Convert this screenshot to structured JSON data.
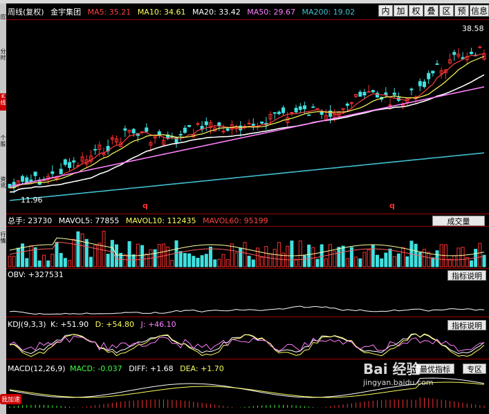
{
  "main_header": {
    "period": "周线(复权)",
    "stock_name": "金宇集团",
    "ma5": "MA5: 35.21",
    "ma10": "MA10: 34.61",
    "ma20": "MA20: 33.42",
    "ma50": "MA50: 29.67",
    "ma200": "MA200: 19.02"
  },
  "toolbar": [
    "内",
    "加",
    "权",
    "叠",
    "区",
    "预",
    "信息"
  ],
  "price_high": "38.58",
  "price_low": "11.96",
  "markers": [
    "q",
    "q"
  ],
  "volume_panel": {
    "total": "总手: 23730",
    "mavol5": "MAVOL5: 77855",
    "mavol10": "MAVOL10: 112435",
    "mavol60": "MAVOL60: 95199",
    "button": "成交量"
  },
  "obv_panel": {
    "label": "OBV: +327531",
    "button": "指标说明"
  },
  "kdj_panel": {
    "title": "KDJ(9,3,3)",
    "k": "K: +51.90",
    "d": "D: +54.80",
    "j": "J: +46.10",
    "button": "指标说明"
  },
  "macd_panel": {
    "title": "MACD(12,26,9)",
    "macd": "MACD: -0.037",
    "diff": "DIFF: +1.68",
    "dea": "DEA: +1.70",
    "button_left": "最优指标",
    "button_right": "专区"
  },
  "left_tabs": [
    "应",
    "分时",
    "K线",
    "个股",
    "资讯",
    "行情"
  ],
  "badge": "我加速",
  "watermark": {
    "brand": "Bai 经验",
    "url": "jingyan.baidu.com"
  },
  "colors": {
    "ma5": "#ff4040",
    "ma10": "#ffff60",
    "ma20": "#ffffff",
    "ma50": "#ff80ff",
    "ma200": "#40c0d0",
    "up": "#ff3030",
    "down": "#40e0e0"
  }
}
